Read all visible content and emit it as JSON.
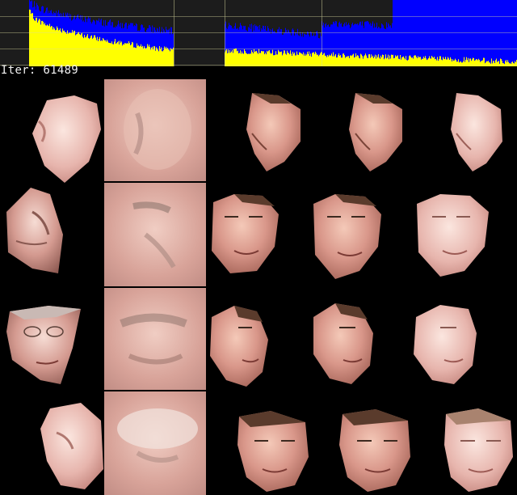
{
  "status": {
    "iter_label": "Iter:",
    "iter_value": "61489"
  },
  "colors": {
    "background": "#000000",
    "graph_background": "#1c1c1c",
    "grid_line": "#d9d9a0",
    "loss_src": "#0000ff",
    "loss_dst": "#ffff00",
    "text": "#f2f2f2"
  },
  "preview_grid": {
    "columns": [
      "source-input",
      "source-reconstruction",
      "destination-input",
      "destination-reconstruction",
      "swap-result"
    ],
    "rows": 4
  }
}
